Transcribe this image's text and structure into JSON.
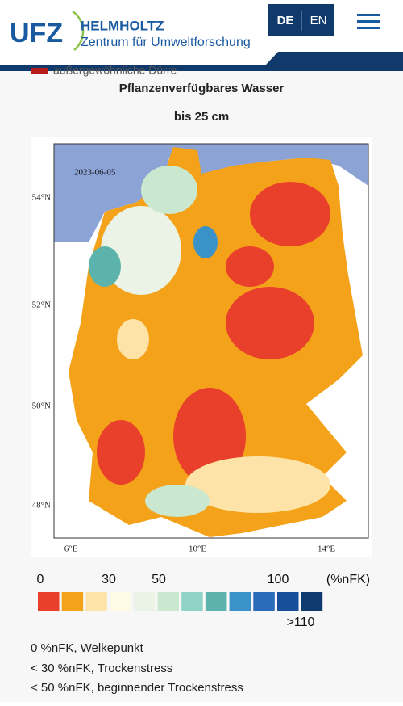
{
  "header": {
    "logo": "UFZ",
    "org_name": "HELMHOLTZ",
    "org_subtitle": "Zentrum für Umweltforschung",
    "languages": [
      "DE",
      "EN"
    ]
  },
  "partial_text": "außergewöhnliche Dürre",
  "map": {
    "title": "Pflanzenverfügbares Wasser",
    "subtitle": "bis 25 cm",
    "date": "2023-06-05",
    "lat_labels": [
      "54°N",
      "52°N",
      "50°N",
      "48°N"
    ],
    "lon_labels": [
      "6°E",
      "10°E",
      "14°E"
    ]
  },
  "legend": {
    "labels": [
      "0",
      "30",
      "50",
      "100"
    ],
    "unit": "(%nFK)",
    "overflow_label": ">110",
    "colors": [
      "#e8402a",
      "#f5a21b",
      "#fde3a7",
      "#fdfbe6",
      "#eaf3e6",
      "#c9e8cf",
      "#8fd3c6",
      "#5bb3ab",
      "#3a92c9",
      "#2a6bba",
      "#174f9a",
      "#0e3a70"
    ]
  },
  "notes": [
    "0 %nFK, Welkepunkt",
    "< 30 %nFK, Trockenstress",
    "< 50 %nFK, beginnender Trockenstress"
  ]
}
